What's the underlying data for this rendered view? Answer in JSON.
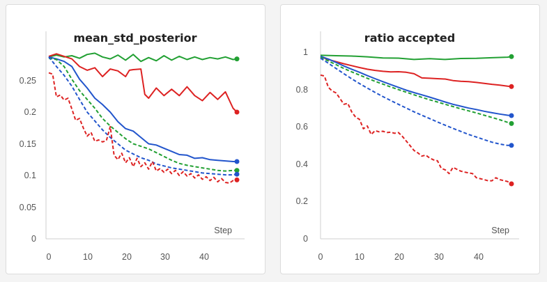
{
  "colors": {
    "green": "#22a033",
    "red": "#dd2222",
    "blue": "#2255cc",
    "axis": "#cfcfcf",
    "text": "#555555"
  },
  "chart_data": [
    {
      "type": "line",
      "title": "mean_std_posterior",
      "xlabel": "Step",
      "ylabel": "",
      "xlim": [
        0,
        49
      ],
      "ylim": [
        0,
        0.3
      ],
      "xticks": [
        "0",
        "10",
        "20",
        "30",
        "40"
      ],
      "yticks": [
        "0",
        "0.05",
        "0.1",
        "0.15",
        "0.2",
        "0.25"
      ],
      "legend": "none",
      "series": [
        {
          "color": "green",
          "dash": false,
          "end_marker": true,
          "x": [
            0,
            2,
            4,
            6,
            8,
            10,
            12,
            14,
            16,
            18,
            20,
            22,
            24,
            26,
            28,
            30,
            32,
            34,
            36,
            38,
            40,
            42,
            44,
            46,
            48,
            49
          ],
          "y": [
            0.287,
            0.29,
            0.287,
            0.289,
            0.285,
            0.291,
            0.293,
            0.287,
            0.284,
            0.29,
            0.282,
            0.291,
            0.28,
            0.286,
            0.281,
            0.289,
            0.282,
            0.288,
            0.283,
            0.287,
            0.283,
            0.286,
            0.284,
            0.287,
            0.283,
            0.284
          ]
        },
        {
          "color": "red",
          "dash": false,
          "end_marker": true,
          "x": [
            0,
            2,
            4,
            6,
            8,
            10,
            12,
            14,
            16,
            18,
            20,
            21,
            22,
            24,
            25,
            26,
            28,
            30,
            32,
            34,
            36,
            38,
            40,
            42,
            44,
            46,
            48,
            49
          ],
          "y": [
            0.288,
            0.292,
            0.288,
            0.284,
            0.272,
            0.266,
            0.27,
            0.256,
            0.268,
            0.265,
            0.256,
            0.266,
            0.267,
            0.268,
            0.228,
            0.222,
            0.238,
            0.226,
            0.236,
            0.226,
            0.24,
            0.226,
            0.218,
            0.231,
            0.22,
            0.232,
            0.206,
            0.2
          ]
        },
        {
          "color": "blue",
          "dash": false,
          "end_marker": true,
          "x": [
            0,
            2,
            4,
            6,
            8,
            10,
            12,
            14,
            16,
            18,
            20,
            22,
            24,
            26,
            28,
            30,
            32,
            34,
            36,
            38,
            40,
            42,
            44,
            46,
            48,
            49
          ],
          "y": [
            0.287,
            0.284,
            0.28,
            0.272,
            0.252,
            0.238,
            0.222,
            0.212,
            0.2,
            0.185,
            0.174,
            0.17,
            0.16,
            0.15,
            0.148,
            0.143,
            0.138,
            0.133,
            0.132,
            0.127,
            0.128,
            0.125,
            0.124,
            0.123,
            0.122,
            0.122
          ]
        },
        {
          "color": "green",
          "dash": true,
          "end_marker": true,
          "x": [
            0,
            2,
            4,
            6,
            8,
            10,
            12,
            14,
            16,
            18,
            20,
            22,
            24,
            26,
            28,
            30,
            32,
            34,
            36,
            38,
            40,
            42,
            44,
            46,
            48,
            49
          ],
          "y": [
            0.285,
            0.283,
            0.272,
            0.252,
            0.234,
            0.22,
            0.206,
            0.19,
            0.178,
            0.168,
            0.158,
            0.15,
            0.146,
            0.142,
            0.136,
            0.13,
            0.124,
            0.119,
            0.116,
            0.114,
            0.112,
            0.11,
            0.108,
            0.107,
            0.108,
            0.108
          ]
        },
        {
          "color": "blue",
          "dash": true,
          "end_marker": true,
          "x": [
            0,
            2,
            4,
            6,
            8,
            10,
            12,
            14,
            16,
            18,
            20,
            22,
            24,
            26,
            28,
            30,
            32,
            34,
            36,
            38,
            40,
            42,
            44,
            46,
            48,
            49
          ],
          "y": [
            0.287,
            0.272,
            0.258,
            0.241,
            0.22,
            0.2,
            0.186,
            0.172,
            0.16,
            0.15,
            0.14,
            0.134,
            0.128,
            0.124,
            0.118,
            0.115,
            0.112,
            0.11,
            0.108,
            0.106,
            0.104,
            0.103,
            0.102,
            0.101,
            0.101,
            0.102
          ]
        },
        {
          "color": "red",
          "dash": true,
          "end_marker": true,
          "x": [
            0,
            1,
            2,
            3,
            4,
            5,
            6,
            7,
            8,
            9,
            10,
            11,
            12,
            13,
            14,
            15,
            16,
            17,
            18,
            19,
            20,
            21,
            22,
            23,
            24,
            25,
            26,
            27,
            28,
            29,
            30,
            31,
            32,
            33,
            34,
            35,
            36,
            37,
            38,
            39,
            40,
            41,
            42,
            43,
            44,
            45,
            46,
            47,
            48,
            49
          ],
          "y": [
            0.262,
            0.26,
            0.224,
            0.227,
            0.219,
            0.222,
            0.205,
            0.187,
            0.19,
            0.175,
            0.162,
            0.168,
            0.154,
            0.156,
            0.153,
            0.155,
            0.177,
            0.132,
            0.125,
            0.135,
            0.12,
            0.128,
            0.114,
            0.127,
            0.114,
            0.12,
            0.11,
            0.122,
            0.107,
            0.111,
            0.105,
            0.11,
            0.103,
            0.108,
            0.1,
            0.106,
            0.099,
            0.103,
            0.096,
            0.101,
            0.094,
            0.098,
            0.092,
            0.097,
            0.09,
            0.095,
            0.089,
            0.088,
            0.092,
            0.093
          ]
        }
      ]
    },
    {
      "type": "line",
      "title": "ratio accepted",
      "xlabel": "Step",
      "ylabel": "",
      "xlim": [
        0,
        49
      ],
      "ylim": [
        0,
        1.02
      ],
      "xticks": [
        "0",
        "10",
        "20",
        "30",
        "40"
      ],
      "yticks": [
        "0",
        "0.2",
        "0.4",
        "0.6",
        "0.8",
        "1"
      ],
      "legend": "none",
      "series": [
        {
          "color": "green",
          "dash": false,
          "end_marker": true,
          "x": [
            0,
            4,
            8,
            12,
            16,
            20,
            24,
            28,
            32,
            36,
            40,
            44,
            48,
            49
          ],
          "y": [
            1.0,
            0.998,
            0.996,
            0.992,
            0.986,
            0.985,
            0.978,
            0.982,
            0.978,
            0.983,
            0.984,
            0.987,
            0.99,
            0.993
          ]
        },
        {
          "color": "red",
          "dash": false,
          "end_marker": true,
          "x": [
            0,
            2,
            4,
            6,
            8,
            10,
            12,
            14,
            16,
            18,
            20,
            22,
            24,
            26,
            28,
            30,
            32,
            34,
            36,
            38,
            40,
            42,
            44,
            46,
            48,
            49
          ],
          "y": [
            0.992,
            0.978,
            0.966,
            0.955,
            0.945,
            0.935,
            0.926,
            0.92,
            0.915,
            0.912,
            0.913,
            0.91,
            0.902,
            0.88,
            0.878,
            0.876,
            0.874,
            0.866,
            0.862,
            0.86,
            0.856,
            0.851,
            0.846,
            0.842,
            0.836,
            0.834
          ]
        },
        {
          "color": "blue",
          "dash": false,
          "end_marker": true,
          "x": [
            0,
            2,
            4,
            6,
            8,
            10,
            12,
            14,
            16,
            18,
            20,
            22,
            24,
            26,
            28,
            30,
            32,
            34,
            36,
            38,
            40,
            42,
            44,
            46,
            48,
            49
          ],
          "y": [
            0.995,
            0.98,
            0.962,
            0.943,
            0.926,
            0.91,
            0.892,
            0.876,
            0.86,
            0.845,
            0.83,
            0.815,
            0.802,
            0.79,
            0.778,
            0.765,
            0.752,
            0.74,
            0.73,
            0.72,
            0.712,
            0.703,
            0.695,
            0.688,
            0.682,
            0.68
          ]
        },
        {
          "color": "green",
          "dash": true,
          "end_marker": true,
          "x": [
            0,
            2,
            4,
            6,
            8,
            10,
            12,
            14,
            16,
            18,
            20,
            22,
            24,
            26,
            28,
            30,
            32,
            34,
            36,
            38,
            40,
            42,
            44,
            46,
            48,
            49
          ],
          "y": [
            0.99,
            0.97,
            0.95,
            0.93,
            0.912,
            0.895,
            0.878,
            0.862,
            0.847,
            0.832,
            0.818,
            0.804,
            0.79,
            0.777,
            0.764,
            0.752,
            0.74,
            0.728,
            0.716,
            0.705,
            0.694,
            0.682,
            0.67,
            0.658,
            0.644,
            0.638
          ]
        },
        {
          "color": "blue",
          "dash": true,
          "end_marker": true,
          "x": [
            0,
            2,
            4,
            6,
            8,
            10,
            12,
            14,
            16,
            18,
            20,
            22,
            24,
            26,
            28,
            30,
            32,
            34,
            36,
            38,
            40,
            42,
            44,
            46,
            48,
            49
          ],
          "y": [
            0.985,
            0.958,
            0.93,
            0.902,
            0.875,
            0.85,
            0.826,
            0.803,
            0.781,
            0.76,
            0.74,
            0.72,
            0.7,
            0.682,
            0.664,
            0.646,
            0.629,
            0.612,
            0.596,
            0.58,
            0.566,
            0.552,
            0.539,
            0.529,
            0.522,
            0.522
          ]
        },
        {
          "color": "red",
          "dash": true,
          "end_marker": true,
          "x": [
            0,
            1,
            2,
            3,
            4,
            5,
            6,
            7,
            8,
            9,
            10,
            11,
            12,
            13,
            14,
            15,
            16,
            17,
            18,
            19,
            20,
            21,
            22,
            23,
            24,
            25,
            26,
            27,
            28,
            29,
            30,
            31,
            32,
            33,
            34,
            35,
            36,
            37,
            38,
            39,
            40,
            41,
            42,
            43,
            44,
            45,
            46,
            47,
            48,
            49
          ],
          "y": [
            0.895,
            0.89,
            0.83,
            0.81,
            0.8,
            0.77,
            0.74,
            0.745,
            0.7,
            0.672,
            0.66,
            0.61,
            0.625,
            0.58,
            0.6,
            0.594,
            0.597,
            0.59,
            0.592,
            0.586,
            0.59,
            0.57,
            0.545,
            0.52,
            0.495,
            0.482,
            0.465,
            0.47,
            0.455,
            0.445,
            0.44,
            0.4,
            0.392,
            0.372,
            0.405,
            0.395,
            0.385,
            0.38,
            0.376,
            0.372,
            0.35,
            0.345,
            0.34,
            0.334,
            0.334,
            0.35,
            0.34,
            0.335,
            0.33,
            0.318
          ]
        }
      ]
    }
  ]
}
